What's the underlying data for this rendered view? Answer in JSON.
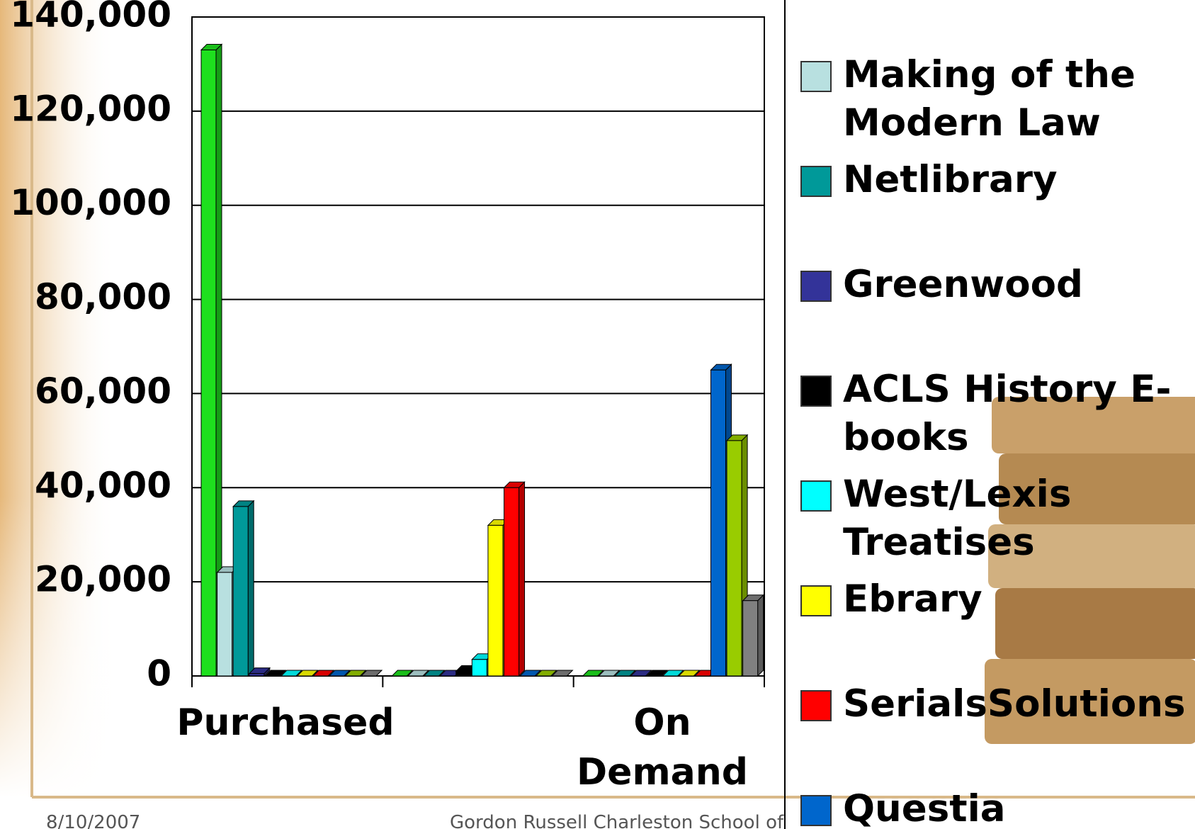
{
  "chart_data": {
    "type": "bar",
    "categories": [
      "Purchased",
      null,
      "On Demand"
    ],
    "series": [
      {
        "color": "#1ee01e",
        "values": [
          133000,
          0,
          0
        ]
      },
      {
        "name": "Making of the Modern Law",
        "color": "#b8e0e0",
        "values": [
          22000,
          0,
          0
        ]
      },
      {
        "name": "Netlibrary",
        "color": "#009999",
        "values": [
          36000,
          0,
          0
        ]
      },
      {
        "name": "Greenwood",
        "color": "#333399",
        "values": [
          500,
          0,
          0
        ]
      },
      {
        "name": "ACLS History E-books",
        "color": "#000000",
        "values": [
          0,
          1000,
          0
        ]
      },
      {
        "name": "West/Lexis Treatises",
        "color": "#00ffff",
        "values": [
          0,
          3500,
          0
        ]
      },
      {
        "name": "Ebrary",
        "color": "#ffff00",
        "values": [
          0,
          32000,
          0
        ]
      },
      {
        "name": "SerialsSolutions",
        "color": "#ff0000",
        "values": [
          0,
          40000,
          0
        ]
      },
      {
        "name": "Questia",
        "color": "#0066cc",
        "values": [
          0,
          0,
          65000
        ]
      },
      {
        "color": "#99cc00",
        "values": [
          0,
          0,
          50000
        ]
      },
      {
        "color": "#808080",
        "values": [
          0,
          0,
          16000
        ]
      }
    ],
    "ylim": [
      0,
      140000
    ],
    "yticks": [
      0,
      {
        "value": 20000,
        "label": "20,000"
      },
      {
        "value": 40000,
        "label": "40,000"
      },
      {
        "value": 60000,
        "label": "60,000"
      },
      {
        "value": 80000,
        "label": "80,000"
      },
      {
        "value": 100000,
        "label": "100,000"
      },
      {
        "value": 120000,
        "label": "120,000"
      },
      {
        "value": 140000,
        "label": "140,000"
      }
    ],
    "grid": true
  },
  "footer": {
    "date": "8/10/2007",
    "author": "Gordon Russell Charleston School of"
  }
}
